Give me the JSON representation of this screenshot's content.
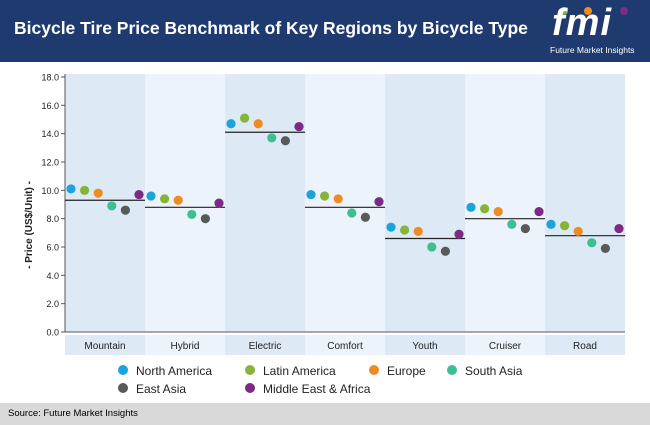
{
  "header": {
    "title": "Bicycle Tire Price Benchmark of Key Regions by Bicycle Type"
  },
  "logo": {
    "letters": "fmi",
    "subtitle": "Future Market Insights"
  },
  "footer": {
    "source": "Source: Future Market Insights"
  },
  "colors": {
    "header_bg": "#1f3a6e",
    "band_a": "#dde9f5",
    "band_b": "#edf3fa",
    "series": [
      "#1aa3dd",
      "#86b33a",
      "#f08a23",
      "#3dbf93",
      "#595959",
      "#7b2b83"
    ]
  },
  "chart_data": {
    "type": "scatter",
    "title": "Bicycle Tire Price Benchmark of Key Regions by Bicycle Type",
    "xlabel": "",
    "ylabel": "- Price (US$/Unit) -",
    "ylim": [
      0,
      18
    ],
    "yticks": [
      "0.0",
      "2.0",
      "4.0",
      "6.0",
      "8.0",
      "10.0",
      "12.0",
      "14.0",
      "16.0",
      "18.0"
    ],
    "categories": [
      "Mountain",
      "Hybrid",
      "Electric",
      "Comfort",
      "Youth",
      "Cruiser",
      "Road"
    ],
    "series": [
      {
        "name": "North America",
        "values": [
          10.1,
          9.6,
          14.7,
          9.7,
          7.4,
          8.8,
          7.6
        ]
      },
      {
        "name": "Latin America",
        "values": [
          10.0,
          9.4,
          15.1,
          9.6,
          7.2,
          8.7,
          7.5
        ]
      },
      {
        "name": "Europe",
        "values": [
          9.8,
          9.3,
          14.7,
          9.4,
          7.1,
          8.5,
          7.1
        ]
      },
      {
        "name": "South Asia",
        "values": [
          8.9,
          8.3,
          13.7,
          8.4,
          6.0,
          7.6,
          6.3
        ]
      },
      {
        "name": "East Asia",
        "values": [
          8.6,
          8.0,
          13.5,
          8.1,
          5.7,
          7.3,
          5.9
        ]
      },
      {
        "name": "Middle East & Africa",
        "values": [
          9.7,
          9.1,
          14.5,
          9.2,
          6.9,
          8.5,
          7.3
        ]
      }
    ],
    "averages": [
      9.3,
      8.8,
      14.1,
      8.8,
      6.6,
      8.0,
      6.8
    ],
    "legend_position": "bottom"
  }
}
